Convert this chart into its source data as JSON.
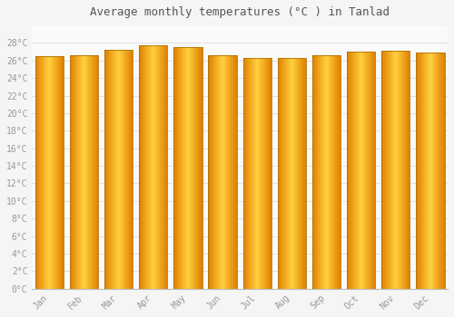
{
  "title": "Average monthly temperatures (°C ) in Tanlad",
  "months": [
    "Jan",
    "Feb",
    "Mar",
    "Apr",
    "May",
    "Jun",
    "Jul",
    "Aug",
    "Sep",
    "Oct",
    "Nov",
    "Dec"
  ],
  "temperatures": [
    26.5,
    26.6,
    27.2,
    27.7,
    27.5,
    26.6,
    26.3,
    26.3,
    26.6,
    27.0,
    27.1,
    26.9
  ],
  "ylim": [
    0,
    30
  ],
  "yticks": [
    0,
    2,
    4,
    6,
    8,
    10,
    12,
    14,
    16,
    18,
    20,
    22,
    24,
    26,
    28
  ],
  "bar_color_left": "#E08000",
  "bar_color_center": "#FFD040",
  "bar_color_right": "#E08000",
  "bar_edge_color": "#B07000",
  "background_color": "#F5F5F5",
  "plot_bg_color": "#FAFAFA",
  "grid_color": "#E0E0E0",
  "title_fontsize": 9,
  "tick_fontsize": 7,
  "font_color": "#999999",
  "title_color": "#555555"
}
